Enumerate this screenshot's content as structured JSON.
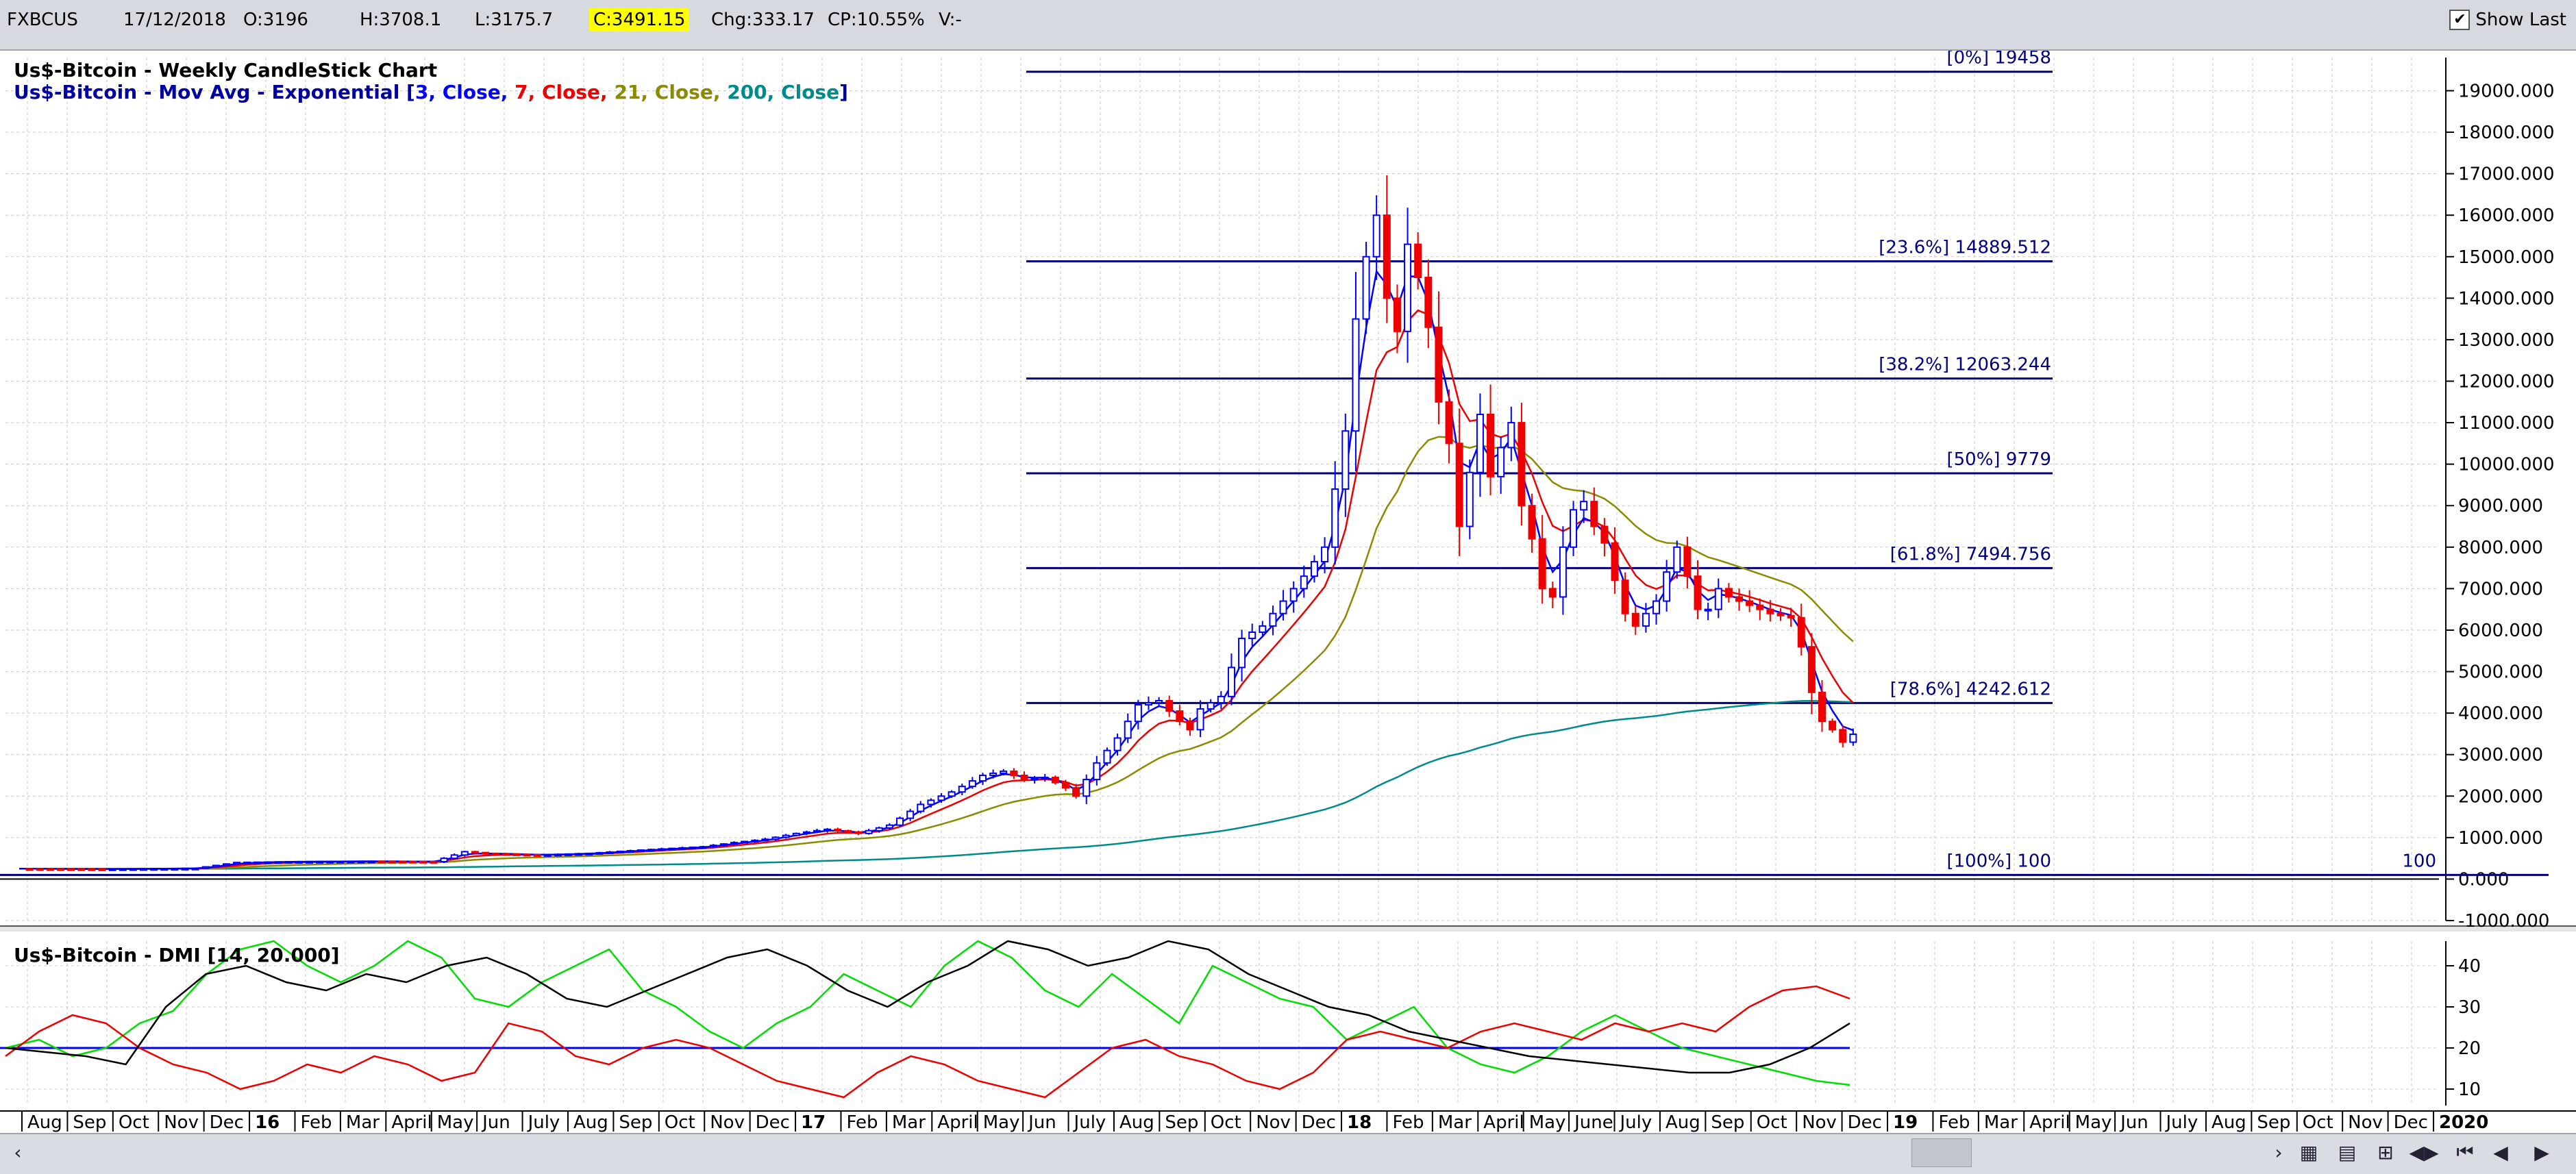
{
  "toolbar": {
    "symbol": "FXBCUS",
    "date": "17/12/2018",
    "open": "O:3196",
    "high": "H:3708.1",
    "low": "L:3175.7",
    "close": "C:3491.15",
    "change": "Chg:333.17",
    "change_pct": "CP:10.55%",
    "volume": "V:-",
    "show_last_label": "Show Last",
    "show_last_checked": true
  },
  "legend": {
    "line1": "Us$-Bitcoin - Weekly CandleStick Chart",
    "line2_prefix": "Us$-Bitcoin - Mov Avg - Exponential [",
    "ma_3": "3, Close, ",
    "ma_7": "7, Close, ",
    "ma_21": "21, Close, ",
    "ma_200": "200, Close",
    "line2_suffix": "]",
    "dmi": "Us$-Bitcoin - DMI [14, 20.000]"
  },
  "colors": {
    "up_candle": "#0000ff",
    "down_candle": "#ee0000",
    "ma3": "#0000ff",
    "ma7": "#ee0000",
    "ma21": "#8b8b00",
    "ma200": "#008b8b",
    "fib_line": "#00007f",
    "di_plus": "#00dd00",
    "di_minus": "#ee0000",
    "adx": "#000000",
    "dmi_threshold": "#0000ff"
  },
  "chart_data": [
    {
      "type": "candlestick",
      "title": "Us$-Bitcoin - Weekly CandleStick Chart",
      "ylim": [
        -1000,
        19800
      ],
      "y_ticks": [
        "19000.000",
        "18000.000",
        "17000.000",
        "16000.000",
        "15000.000",
        "14000.000",
        "13000.000",
        "12000.000",
        "11000.000",
        "10000.000",
        "9000.000",
        "8000.000",
        "7000.000",
        "6000.000",
        "5000.000",
        "4000.000",
        "3000.000",
        "2000.000",
        "1000.000",
        "0.000",
        "-1000.000"
      ],
      "x_labels": [
        "Aug",
        "Sep",
        "Oct",
        "Nov",
        "Dec",
        "16",
        "Feb",
        "Mar",
        "April",
        "May",
        "Jun",
        "July",
        "Aug",
        "Sep",
        "Oct",
        "Nov",
        "Dec",
        "17",
        "Feb",
        "Mar",
        "April",
        "May",
        "Jun",
        "July",
        "Aug",
        "Sep",
        "Oct",
        "Nov",
        "Dec",
        "18",
        "Feb",
        "Mar",
        "April",
        "May",
        "June",
        "July",
        "Aug",
        "Sep",
        "Oct",
        "Nov",
        "Dec",
        "19",
        "Feb",
        "Mar",
        "April",
        "May",
        "Jun",
        "July",
        "Aug",
        "Sep",
        "Oct",
        "Nov",
        "Dec",
        "2020"
      ],
      "x_bold": [
        "16",
        "17",
        "18",
        "19",
        "2020"
      ],
      "price_path": [
        [
          0,
          250
        ],
        [
          8,
          240
        ],
        [
          17,
          260
        ],
        [
          21,
          400
        ],
        [
          26,
          420
        ],
        [
          34,
          430
        ],
        [
          40,
          420
        ],
        [
          43,
          660
        ],
        [
          45,
          620
        ],
        [
          50,
          580
        ],
        [
          55,
          620
        ],
        [
          60,
          700
        ],
        [
          66,
          780
        ],
        [
          69,
          880
        ],
        [
          72,
          960
        ],
        [
          75,
          1100
        ],
        [
          78,
          1200
        ],
        [
          81,
          1100
        ],
        [
          84,
          1300
        ],
        [
          87,
          1800
        ],
        [
          90,
          2100
        ],
        [
          93,
          2500
        ],
        [
          95,
          2600
        ],
        [
          97,
          2400
        ],
        [
          99,
          2450
        ],
        [
          101,
          2200
        ],
        [
          102,
          2000
        ],
        [
          104,
          2800
        ],
        [
          106,
          3400
        ],
        [
          108,
          4200
        ],
        [
          110,
          4300
        ],
        [
          112,
          3800
        ],
        [
          113,
          3600
        ],
        [
          114,
          4100
        ],
        [
          116,
          4400
        ],
        [
          118,
          5800
        ],
        [
          120,
          6100
        ],
        [
          122,
          6700
        ],
        [
          124,
          7300
        ],
        [
          126,
          8000
        ],
        [
          128,
          10800
        ],
        [
          129,
          13500
        ],
        [
          130,
          15000
        ],
        [
          131,
          16000
        ],
        [
          132,
          14000
        ],
        [
          133,
          13200
        ],
        [
          134,
          15300
        ],
        [
          135,
          14500
        ],
        [
          136,
          13300
        ],
        [
          137,
          11500
        ],
        [
          138,
          10500
        ],
        [
          139,
          8500
        ],
        [
          140,
          9800
        ],
        [
          141,
          11200
        ],
        [
          142,
          9700
        ],
        [
          143,
          10400
        ],
        [
          144,
          11000
        ],
        [
          145,
          9000
        ],
        [
          146,
          8200
        ],
        [
          147,
          7000
        ],
        [
          148,
          6800
        ],
        [
          149,
          8000
        ],
        [
          150,
          8900
        ],
        [
          151,
          9100
        ],
        [
          152,
          8500
        ],
        [
          153,
          8100
        ],
        [
          154,
          7200
        ],
        [
          155,
          6400
        ],
        [
          156,
          6100
        ],
        [
          157,
          6400
        ],
        [
          158,
          6700
        ],
        [
          159,
          7400
        ],
        [
          160,
          8000
        ],
        [
          161,
          7300
        ],
        [
          162,
          6500
        ],
        [
          163,
          6500
        ],
        [
          164,
          7000
        ],
        [
          165,
          6800
        ],
        [
          166,
          6700
        ],
        [
          167,
          6600
        ],
        [
          168,
          6500
        ],
        [
          169,
          6400
        ],
        [
          170,
          6350
        ],
        [
          171,
          6300
        ],
        [
          172,
          5600
        ],
        [
          173,
          4500
        ],
        [
          174,
          3800
        ],
        [
          175,
          3600
        ],
        [
          176,
          3300
        ],
        [
          177,
          3491
        ]
      ],
      "fib_levels": [
        {
          "label": "[0%] 19458",
          "value": 19458
        },
        {
          "label": "[23.6%] 14889.512",
          "value": 14889.512
        },
        {
          "label": "[38.2%] 12063.244",
          "value": 12063.244
        },
        {
          "label": "[50%] 9779",
          "value": 9779
        },
        {
          "label": "[61.8%] 7494.756",
          "value": 7494.756
        },
        {
          "label": "[78.6%] 4242.612",
          "value": 4242.612
        },
        {
          "label": "[100%] 100",
          "value": 100
        }
      ],
      "right_marker": "100"
    },
    {
      "type": "line",
      "title": "Us$-Bitcoin - DMI [14, 20.000]",
      "ylim": [
        6,
        46
      ],
      "y_ticks": [
        "40",
        "30",
        "20",
        "10"
      ],
      "threshold": 20,
      "series": [
        {
          "values": [
            20,
            22,
            18,
            20,
            26,
            29,
            38,
            44,
            48,
            40,
            36,
            40,
            46,
            42,
            32,
            30,
            36,
            40,
            44,
            34,
            30,
            24,
            20,
            26,
            30,
            38,
            34,
            30,
            40,
            48,
            42,
            34,
            30,
            38,
            32,
            26,
            40,
            36,
            32,
            30,
            22,
            26,
            30,
            20,
            16,
            14,
            18,
            24,
            28,
            24,
            20,
            18,
            16,
            14,
            12,
            11
          ]
        },
        {
          "values": [
            18,
            24,
            28,
            26,
            20,
            16,
            14,
            10,
            12,
            16,
            14,
            18,
            16,
            12,
            14,
            26,
            24,
            18,
            16,
            20,
            22,
            20,
            16,
            12,
            10,
            8,
            14,
            18,
            16,
            12,
            10,
            8,
            14,
            20,
            22,
            18,
            16,
            12,
            10,
            14,
            22,
            24,
            22,
            20,
            24,
            26,
            24,
            22,
            26,
            24,
            26,
            24,
            30,
            34,
            35,
            32
          ]
        },
        {
          "values": [
            20,
            19,
            18,
            16,
            30,
            38,
            40,
            36,
            34,
            38,
            36,
            40,
            42,
            38,
            32,
            30,
            34,
            38,
            42,
            44,
            40,
            34,
            30,
            36,
            40,
            46,
            44,
            40,
            42,
            48,
            44,
            38,
            34,
            30,
            28,
            24,
            22,
            20,
            18,
            17,
            16,
            15,
            14,
            14,
            16,
            20,
            26
          ]
        }
      ]
    }
  ]
}
